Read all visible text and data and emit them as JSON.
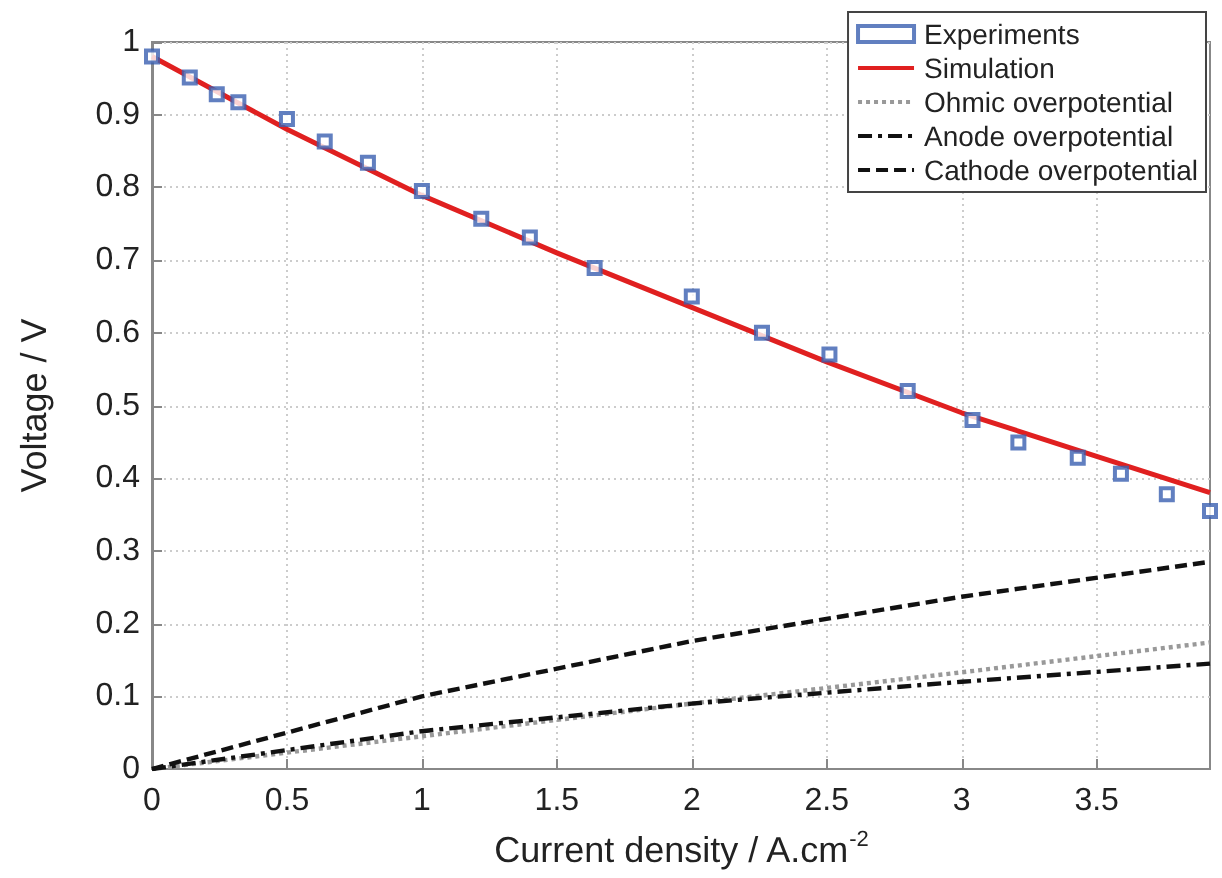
{
  "chart_data": {
    "type": "line",
    "xlabel": "Current density / A.cm$^{-2}$",
    "ylabel": "Voltage / V",
    "xlim": [
      0,
      3.92
    ],
    "xticks": [
      0,
      0.5,
      1,
      1.5,
      2,
      2.5,
      3,
      3.5
    ],
    "ylim": [
      0,
      1
    ],
    "yticks": [
      0,
      0.1,
      0.2,
      0.3,
      0.4,
      0.5,
      0.6,
      0.7,
      0.8,
      0.9,
      1
    ],
    "grid": true,
    "legend": "top right",
    "series": [
      {
        "name": "Experiments",
        "type": "scatter",
        "marker": "square",
        "color": "#3a5fb0",
        "x": [
          0,
          0.14,
          0.24,
          0.32,
          0.5,
          0.64,
          0.8,
          1.0,
          1.22,
          1.4,
          1.64,
          2.0,
          2.26,
          2.51,
          2.8,
          3.04,
          3.21,
          3.43,
          3.59,
          3.76,
          3.92
        ],
        "values": [
          0.98,
          0.951,
          0.928,
          0.917,
          0.894,
          0.863,
          0.834,
          0.795,
          0.757,
          0.731,
          0.689,
          0.65,
          0.6,
          0.57,
          0.52,
          0.48,
          0.449,
          0.428,
          0.406,
          0.378,
          0.355
        ]
      },
      {
        "name": "Simulation",
        "line_style": "solid",
        "color": "#e02020",
        "x": [
          0,
          0.5,
          1,
          1.5,
          2,
          2.5,
          3,
          3.5,
          3.92
        ],
        "values": [
          0.98,
          0.88,
          0.789,
          0.71,
          0.635,
          0.56,
          0.49,
          0.43,
          0.38
        ]
      },
      {
        "name": "Ohmic overpotential",
        "line_style": "dotted",
        "color": "#999999",
        "x": [
          0,
          1,
          2,
          3,
          3.92
        ],
        "values": [
          0,
          0.045,
          0.09,
          0.133,
          0.174
        ]
      },
      {
        "name": "Anode overpotential",
        "line_style": "dashdot",
        "color": "#111111",
        "x": [
          0,
          1,
          2,
          3,
          3.92
        ],
        "values": [
          0,
          0.052,
          0.09,
          0.12,
          0.145
        ]
      },
      {
        "name": "Cathode overpotential",
        "line_style": "dashed",
        "color": "#111111",
        "x": [
          0,
          1,
          2,
          3,
          3.92
        ],
        "values": [
          0,
          0.1,
          0.176,
          0.237,
          0.285
        ]
      }
    ]
  }
}
